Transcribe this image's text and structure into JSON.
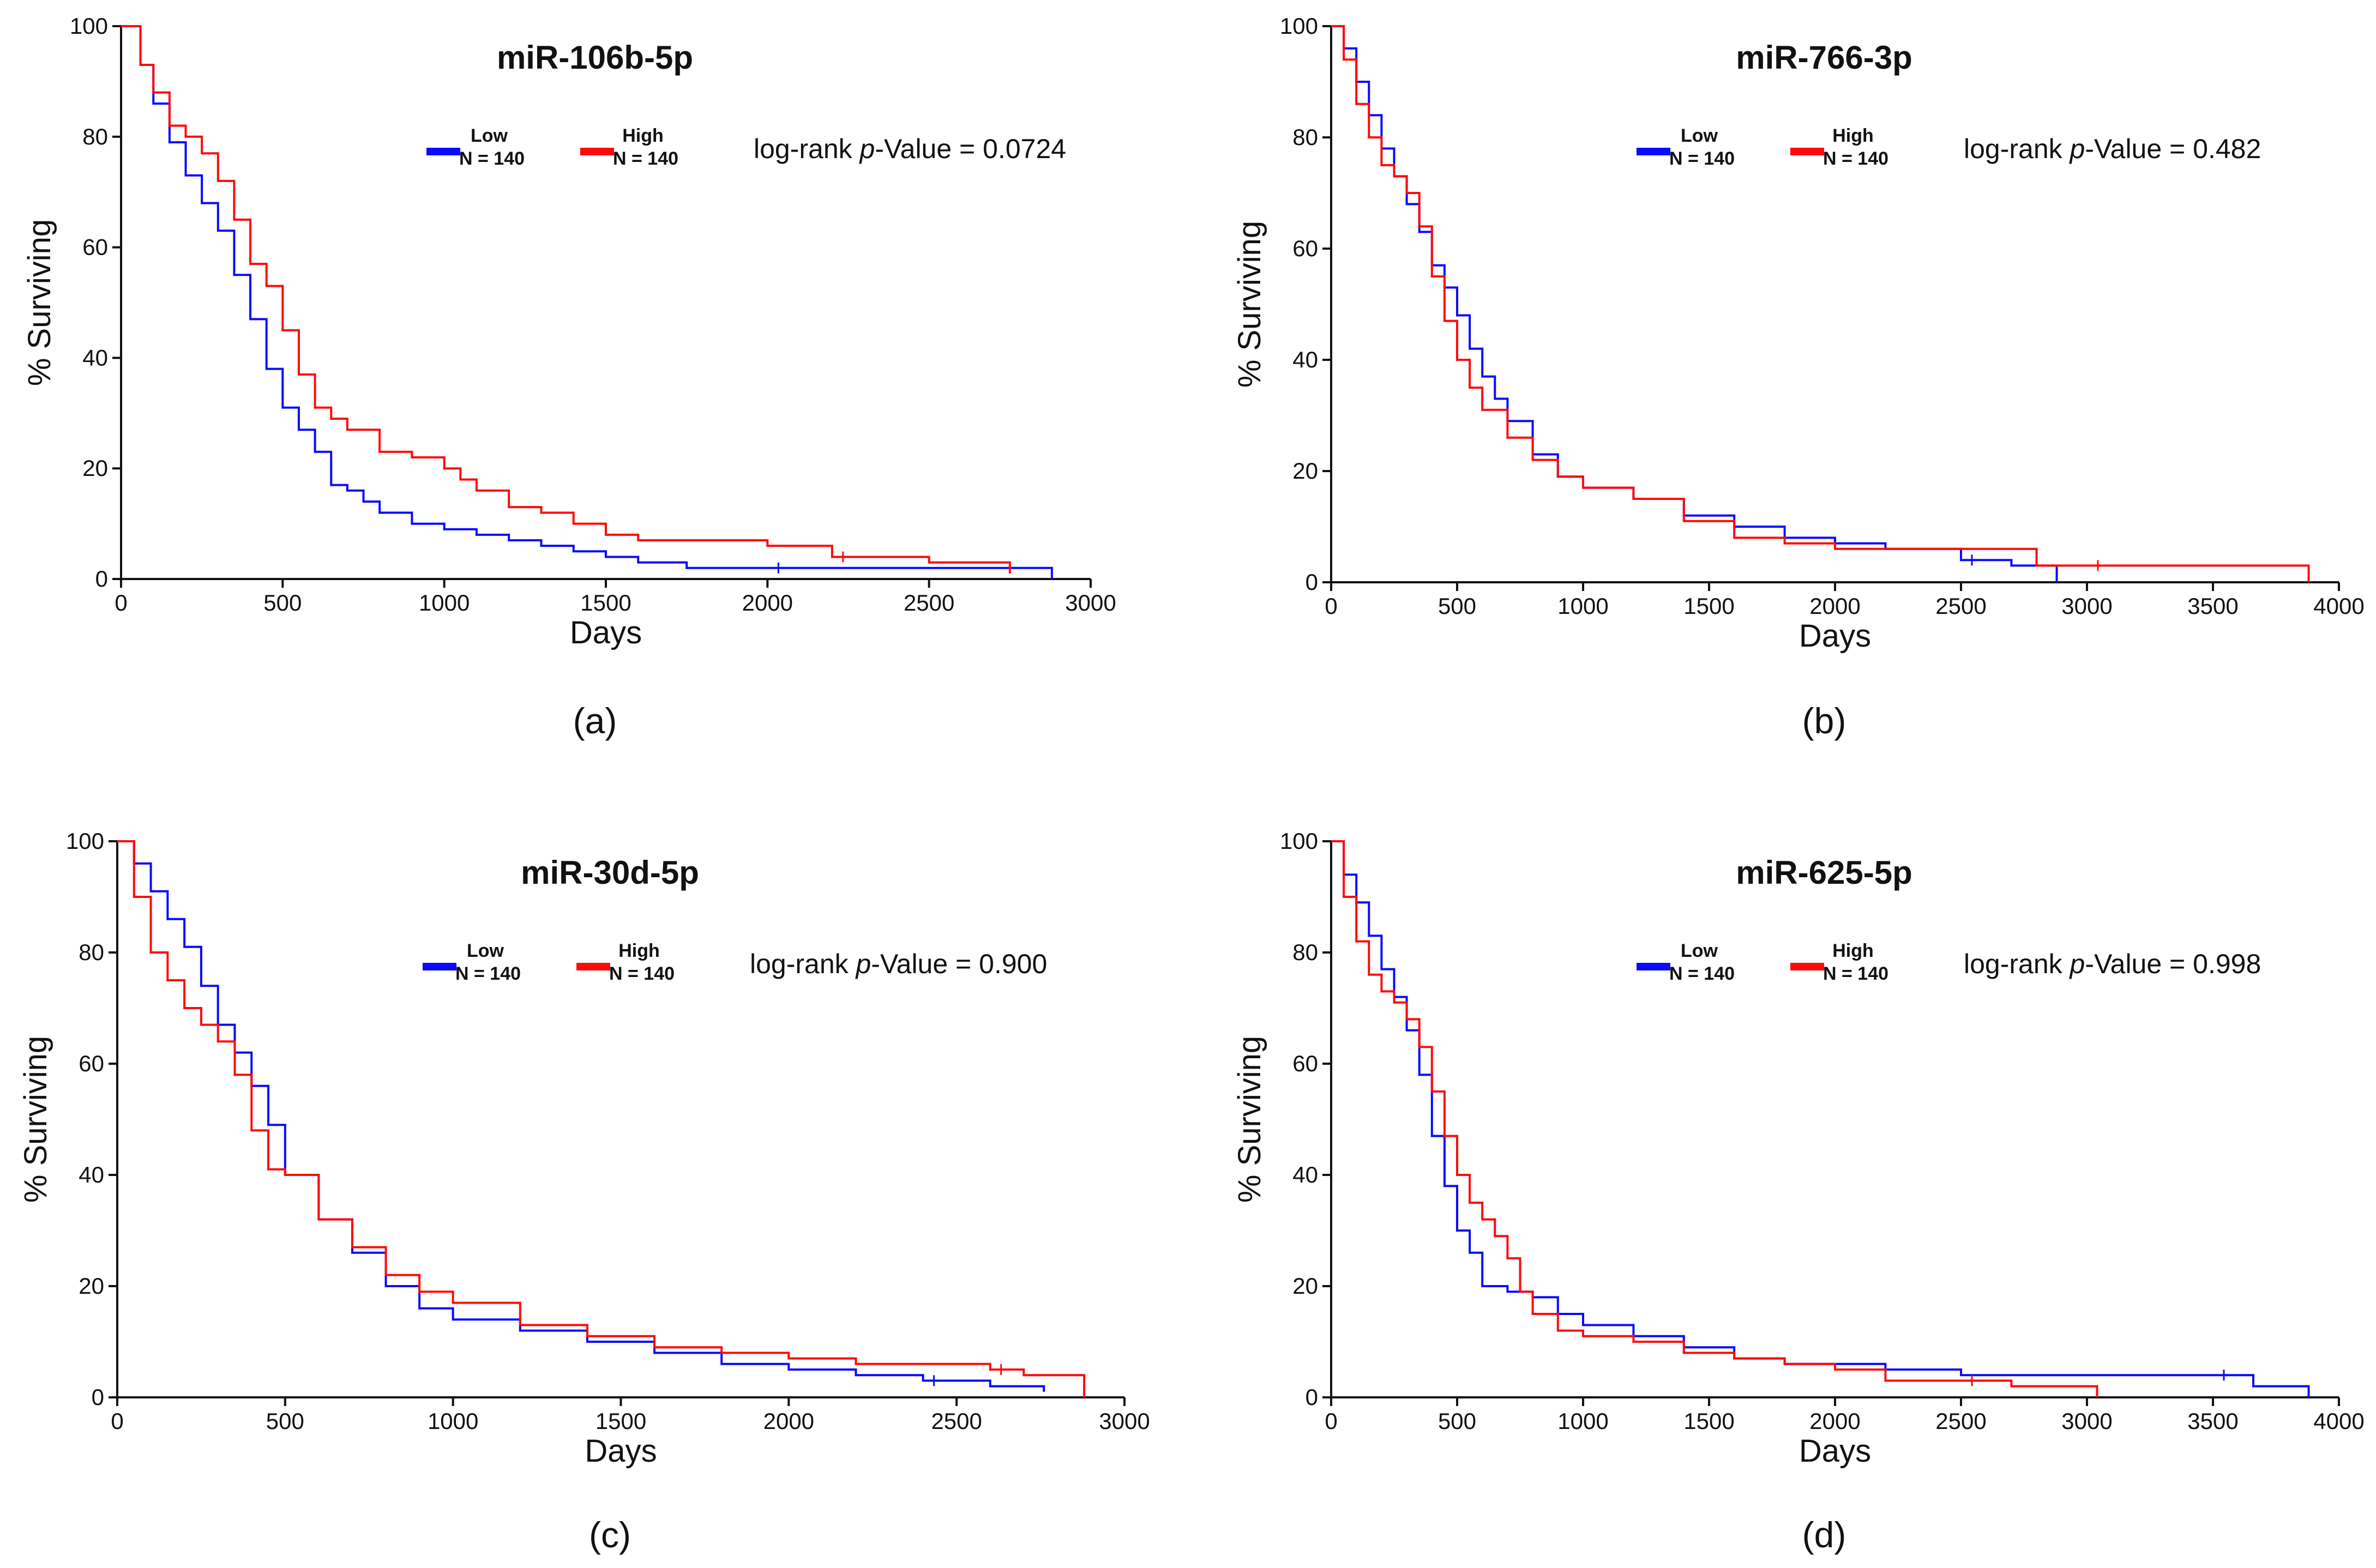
{
  "colors": {
    "low": "#0a0aff",
    "high": "#ff0a0a",
    "axis": "#111111"
  },
  "chart_data": [
    {
      "type": "line",
      "panel_label": "(a)",
      "title": "miR-106b-5p",
      "xlabel": "Days",
      "ylabel": "% Surviving",
      "xlim": [
        0,
        3000
      ],
      "ylim": [
        0,
        100
      ],
      "xticks": [
        0,
        500,
        1000,
        1500,
        2000,
        2500,
        3000
      ],
      "yticks": [
        0,
        20,
        40,
        60,
        80,
        100
      ],
      "legend": [
        {
          "name": "Low",
          "n": "N = 140",
          "color": "#0a0aff"
        },
        {
          "name": "High",
          "n": "N = 140",
          "color": "#ff0a0a"
        }
      ],
      "pvalue_prefix": "log-rank ",
      "pvalue_italic": "p",
      "pvalue_suffix": "-Value = 0.0724",
      "series": [
        {
          "name": "Low",
          "color": "#0a0aff",
          "x": [
            0,
            60,
            100,
            150,
            200,
            250,
            300,
            350,
            400,
            450,
            500,
            550,
            600,
            650,
            700,
            750,
            800,
            900,
            1000,
            1100,
            1200,
            1300,
            1400,
            1500,
            1600,
            1750,
            2000,
            2500,
            2880
          ],
          "y": [
            100,
            93,
            86,
            79,
            73,
            68,
            63,
            55,
            47,
            38,
            31,
            27,
            23,
            17,
            16,
            14,
            12,
            10,
            9,
            8,
            7,
            6,
            5,
            4,
            3,
            2,
            2,
            2,
            0
          ]
        },
        {
          "name": "High",
          "color": "#ff0a0a",
          "x": [
            0,
            60,
            100,
            150,
            200,
            250,
            300,
            350,
            400,
            450,
            500,
            550,
            600,
            650,
            700,
            800,
            900,
            1000,
            1050,
            1100,
            1200,
            1300,
            1400,
            1500,
            1600,
            1800,
            2000,
            2200,
            2500,
            2750
          ],
          "y": [
            100,
            93,
            88,
            82,
            80,
            77,
            72,
            65,
            57,
            53,
            45,
            37,
            31,
            29,
            27,
            23,
            22,
            20,
            18,
            16,
            13,
            12,
            10,
            8,
            7,
            7,
            6,
            4,
            3,
            1
          ]
        }
      ]
    },
    {
      "type": "line",
      "panel_label": "(b)",
      "title": "miR-766-3p",
      "xlabel": "Days",
      "ylabel": "% Surviving",
      "xlim": [
        0,
        4000
      ],
      "ylim": [
        0,
        100
      ],
      "xticks": [
        0,
        500,
        1000,
        1500,
        2000,
        2500,
        3000,
        3500,
        4000
      ],
      "yticks": [
        0,
        20,
        40,
        60,
        80,
        100
      ],
      "legend": [
        {
          "name": "Low",
          "n": "N = 140",
          "color": "#0a0aff"
        },
        {
          "name": "High",
          "n": "N = 140",
          "color": "#ff0a0a"
        }
      ],
      "pvalue_prefix": "log-rank ",
      "pvalue_italic": "p",
      "pvalue_suffix": "-Value = 0.482",
      "series": [
        {
          "name": "Low",
          "color": "#0a0aff",
          "x": [
            0,
            50,
            100,
            150,
            200,
            250,
            300,
            350,
            400,
            450,
            500,
            550,
            600,
            650,
            700,
            800,
            900,
            1000,
            1200,
            1400,
            1600,
            1800,
            2000,
            2200,
            2500,
            2700,
            2880
          ],
          "y": [
            100,
            96,
            90,
            84,
            78,
            73,
            68,
            63,
            57,
            53,
            48,
            42,
            37,
            33,
            29,
            23,
            19,
            17,
            15,
            12,
            10,
            8,
            7,
            6,
            4,
            3,
            0
          ]
        },
        {
          "name": "High",
          "color": "#ff0a0a",
          "x": [
            0,
            50,
            100,
            150,
            200,
            250,
            300,
            350,
            400,
            450,
            500,
            550,
            600,
            700,
            800,
            900,
            1000,
            1200,
            1400,
            1600,
            1800,
            2000,
            2500,
            2800,
            3000,
            3500,
            3880
          ],
          "y": [
            100,
            94,
            86,
            80,
            75,
            73,
            70,
            64,
            55,
            47,
            40,
            35,
            31,
            26,
            22,
            19,
            17,
            15,
            11,
            8,
            7,
            6,
            6,
            3,
            3,
            3,
            0
          ]
        }
      ]
    },
    {
      "type": "line",
      "panel_label": "(c)",
      "title": "miR-30d-5p",
      "xlabel": "Days",
      "ylabel": "% Surviving",
      "xlim": [
        0,
        3000
      ],
      "ylim": [
        0,
        100
      ],
      "xticks": [
        0,
        500,
        1000,
        1500,
        2000,
        2500,
        3000
      ],
      "yticks": [
        0,
        20,
        40,
        60,
        80,
        100
      ],
      "legend": [
        {
          "name": "Low",
          "n": "N = 140",
          "color": "#0a0aff"
        },
        {
          "name": "High",
          "n": "N = 140",
          "color": "#ff0a0a"
        }
      ],
      "pvalue_prefix": "log-rank ",
      "pvalue_italic": "p",
      "pvalue_suffix": "-Value = 0.900",
      "series": [
        {
          "name": "Low",
          "color": "#0a0aff",
          "x": [
            0,
            50,
            100,
            150,
            200,
            250,
            300,
            350,
            400,
            450,
            500,
            600,
            700,
            800,
            900,
            1000,
            1200,
            1400,
            1600,
            1800,
            2000,
            2200,
            2400,
            2600,
            2760
          ],
          "y": [
            100,
            96,
            91,
            86,
            81,
            74,
            67,
            62,
            56,
            49,
            40,
            32,
            26,
            20,
            16,
            14,
            12,
            10,
            8,
            6,
            5,
            4,
            3,
            2,
            1
          ]
        },
        {
          "name": "High",
          "color": "#ff0a0a",
          "x": [
            0,
            50,
            100,
            150,
            200,
            250,
            300,
            350,
            400,
            450,
            500,
            600,
            700,
            800,
            900,
            1000,
            1200,
            1400,
            1600,
            1800,
            2000,
            2200,
            2400,
            2600,
            2700,
            2880
          ],
          "y": [
            100,
            90,
            80,
            75,
            70,
            67,
            64,
            58,
            48,
            41,
            40,
            32,
            27,
            22,
            19,
            17,
            13,
            11,
            9,
            8,
            7,
            6,
            6,
            5,
            4,
            0
          ]
        }
      ]
    },
    {
      "type": "line",
      "panel_label": "(d)",
      "title": "miR-625-5p",
      "xlabel": "Days",
      "ylabel": "% Surviving",
      "xlim": [
        0,
        4000
      ],
      "ylim": [
        0,
        100
      ],
      "xticks": [
        0,
        500,
        1000,
        1500,
        2000,
        2500,
        3000,
        3500,
        4000
      ],
      "yticks": [
        0,
        20,
        40,
        60,
        80,
        100
      ],
      "legend": [
        {
          "name": "Low",
          "n": "N = 140",
          "color": "#0a0aff"
        },
        {
          "name": "High",
          "n": "N = 140",
          "color": "#ff0a0a"
        }
      ],
      "pvalue_prefix": "log-rank ",
      "pvalue_italic": "p",
      "pvalue_suffix": "-Value = 0.998",
      "series": [
        {
          "name": "Low",
          "color": "#0a0aff",
          "x": [
            0,
            50,
            100,
            150,
            200,
            250,
            300,
            350,
            400,
            450,
            500,
            550,
            600,
            700,
            800,
            900,
            1000,
            1200,
            1400,
            1600,
            1800,
            2000,
            2200,
            2500,
            3000,
            3500,
            3660,
            3880
          ],
          "y": [
            100,
            94,
            89,
            83,
            77,
            72,
            66,
            58,
            47,
            38,
            30,
            26,
            20,
            19,
            18,
            15,
            13,
            11,
            9,
            7,
            6,
            6,
            5,
            4,
            4,
            4,
            2,
            0
          ]
        },
        {
          "name": "High",
          "color": "#ff0a0a",
          "x": [
            0,
            50,
            100,
            150,
            200,
            250,
            300,
            350,
            400,
            450,
            500,
            550,
            600,
            650,
            700,
            750,
            800,
            900,
            1000,
            1200,
            1400,
            1600,
            1800,
            2000,
            2200,
            2500,
            2700,
            3040
          ],
          "y": [
            100,
            90,
            82,
            76,
            73,
            71,
            68,
            63,
            55,
            47,
            40,
            35,
            32,
            29,
            25,
            19,
            15,
            12,
            11,
            10,
            8,
            7,
            6,
            5,
            3,
            3,
            2,
            0
          ]
        }
      ]
    }
  ]
}
